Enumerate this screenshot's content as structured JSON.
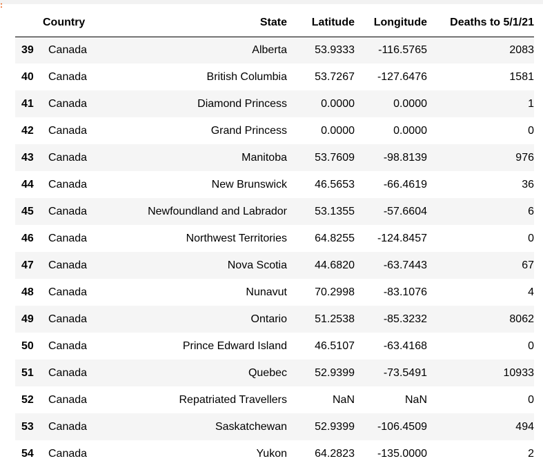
{
  "table": {
    "columns": [
      "",
      "Country",
      "State",
      "Latitude",
      "Longitude",
      "Deaths to 5/1/21"
    ],
    "rows": [
      {
        "index": "39",
        "country": "Canada",
        "state": "Alberta",
        "latitude": "53.9333",
        "longitude": "-116.5765",
        "deaths": "2083"
      },
      {
        "index": "40",
        "country": "Canada",
        "state": "British Columbia",
        "latitude": "53.7267",
        "longitude": "-127.6476",
        "deaths": "1581"
      },
      {
        "index": "41",
        "country": "Canada",
        "state": "Diamond Princess",
        "latitude": "0.0000",
        "longitude": "0.0000",
        "deaths": "1"
      },
      {
        "index": "42",
        "country": "Canada",
        "state": "Grand Princess",
        "latitude": "0.0000",
        "longitude": "0.0000",
        "deaths": "0"
      },
      {
        "index": "43",
        "country": "Canada",
        "state": "Manitoba",
        "latitude": "53.7609",
        "longitude": "-98.8139",
        "deaths": "976"
      },
      {
        "index": "44",
        "country": "Canada",
        "state": "New Brunswick",
        "latitude": "46.5653",
        "longitude": "-66.4619",
        "deaths": "36"
      },
      {
        "index": "45",
        "country": "Canada",
        "state": "Newfoundland and Labrador",
        "latitude": "53.1355",
        "longitude": "-57.6604",
        "deaths": "6"
      },
      {
        "index": "46",
        "country": "Canada",
        "state": "Northwest Territories",
        "latitude": "64.8255",
        "longitude": "-124.8457",
        "deaths": "0"
      },
      {
        "index": "47",
        "country": "Canada",
        "state": "Nova Scotia",
        "latitude": "44.6820",
        "longitude": "-63.7443",
        "deaths": "67"
      },
      {
        "index": "48",
        "country": "Canada",
        "state": "Nunavut",
        "latitude": "70.2998",
        "longitude": "-83.1076",
        "deaths": "4"
      },
      {
        "index": "49",
        "country": "Canada",
        "state": "Ontario",
        "latitude": "51.2538",
        "longitude": "-85.3232",
        "deaths": "8062"
      },
      {
        "index": "50",
        "country": "Canada",
        "state": "Prince Edward Island",
        "latitude": "46.5107",
        "longitude": "-63.4168",
        "deaths": "0"
      },
      {
        "index": "51",
        "country": "Canada",
        "state": "Quebec",
        "latitude": "52.9399",
        "longitude": "-73.5491",
        "deaths": "10933"
      },
      {
        "index": "52",
        "country": "Canada",
        "state": "Repatriated Travellers",
        "latitude": "NaN",
        "longitude": "NaN",
        "deaths": "0"
      },
      {
        "index": "53",
        "country": "Canada",
        "state": "Saskatchewan",
        "latitude": "52.9399",
        "longitude": "-106.4509",
        "deaths": "494"
      },
      {
        "index": "54",
        "country": "Canada",
        "state": "Yukon",
        "latitude": "64.2823",
        "longitude": "-135.0000",
        "deaths": "2"
      }
    ]
  },
  "colors": {
    "row_stripe": "#f5f5f5",
    "header_rule": "#000000",
    "prompt_accent": "#e65100"
  }
}
